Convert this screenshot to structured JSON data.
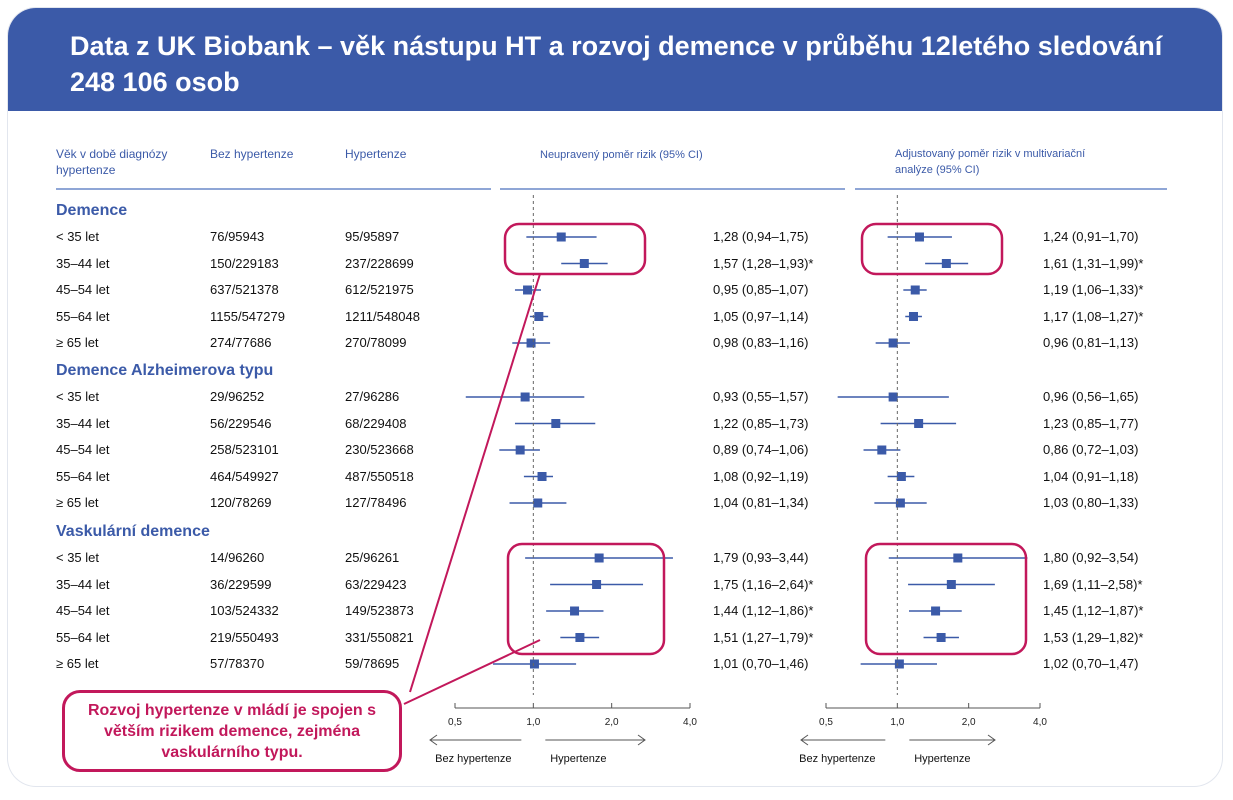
{
  "title": "Data z UK Biobank – věk nástupu HT a rozvoj demence v průběhu 12letého sledování 248 106 osob",
  "headers": {
    "age": "Věk v době diagnózy hypertenze",
    "no_ht": "Bez hypertenze",
    "ht": "Hypertenze",
    "unadjusted": "Neupravený poměr rizik (95% CI)",
    "adjusted": "Adjustovaný poměr rizik v multivariační analýze (95% CI)"
  },
  "callout": "Rozvoj hypertenze v mládí je spojen s větším rizikem demence, zejména vaskulárního typu.",
  "axis": {
    "ticks": [
      "0,5",
      "1,0",
      "2,0",
      "4,0"
    ],
    "left_label": "Bez hypertenze",
    "right_label": "Hypertenze"
  },
  "colors": {
    "banner": "#3b5aa8",
    "accent": "#c2185b",
    "point": "#3b5aa8"
  },
  "chart_data": {
    "type": "forest",
    "x_scale": "log",
    "xlim": [
      0.5,
      4.0
    ],
    "reference": 1.0,
    "groups": [
      {
        "name": "Demence",
        "rows": [
          {
            "age": "< 35 let",
            "no_ht": "76/95943",
            "ht": "95/95897",
            "unadj": [
              1.28,
              0.94,
              1.75
            ],
            "unadj_label": "1,28 (0,94–1,75)",
            "adj": [
              1.24,
              0.91,
              1.7
            ],
            "adj_label": "1,24 (0,91–1,70)"
          },
          {
            "age": "35–44 let",
            "no_ht": "150/229183",
            "ht": "237/228699",
            "unadj": [
              1.57,
              1.28,
              1.93
            ],
            "unadj_label": "1,57 (1,28–1,93)*",
            "adj": [
              1.61,
              1.31,
              1.99
            ],
            "adj_label": "1,61 (1,31–1,99)*"
          },
          {
            "age": "45–54 let",
            "no_ht": "637/521378",
            "ht": "612/521975",
            "unadj": [
              0.95,
              0.85,
              1.07
            ],
            "unadj_label": "0,95 (0,85–1,07)",
            "adj": [
              1.19,
              1.06,
              1.33
            ],
            "adj_label": "1,19 (1,06–1,33)*"
          },
          {
            "age": "55–64 let",
            "no_ht": "1155/547279",
            "ht": "1211/548048",
            "unadj": [
              1.05,
              0.97,
              1.14
            ],
            "unadj_label": "1,05 (0,97–1,14)",
            "adj": [
              1.17,
              1.08,
              1.27
            ],
            "adj_label": "1,17 (1,08–1,27)*"
          },
          {
            "age": "≥ 65 let",
            "no_ht": "274/77686",
            "ht": "270/78099",
            "unadj": [
              0.98,
              0.83,
              1.16
            ],
            "unadj_label": "0,98 (0,83–1,16)",
            "adj": [
              0.96,
              0.81,
              1.13
            ],
            "adj_label": "0,96 (0,81–1,13)"
          }
        ]
      },
      {
        "name": "Demence Alzheimerova typu",
        "rows": [
          {
            "age": "< 35 let",
            "no_ht": "29/96252",
            "ht": "27/96286",
            "unadj": [
              0.93,
              0.55,
              1.57
            ],
            "unadj_label": "0,93 (0,55–1,57)",
            "adj": [
              0.96,
              0.56,
              1.65
            ],
            "adj_label": "0,96 (0,56–1,65)"
          },
          {
            "age": "35–44 let",
            "no_ht": "56/229546",
            "ht": "68/229408",
            "unadj": [
              1.22,
              0.85,
              1.73
            ],
            "unadj_label": "1,22 (0,85–1,73)",
            "adj": [
              1.23,
              0.85,
              1.77
            ],
            "adj_label": "1,23 (0,85–1,77)"
          },
          {
            "age": "45–54 let",
            "no_ht": "258/523101",
            "ht": "230/523668",
            "unadj": [
              0.89,
              0.74,
              1.06
            ],
            "unadj_label": "0,89 (0,74–1,06)",
            "adj": [
              0.86,
              0.72,
              1.03
            ],
            "adj_label": "0,86 (0,72–1,03)"
          },
          {
            "age": "55–64 let",
            "no_ht": "464/549927",
            "ht": "487/550518",
            "unadj": [
              1.08,
              0.92,
              1.19
            ],
            "unadj_label": "1,08 (0,92–1,19)",
            "adj": [
              1.04,
              0.91,
              1.18
            ],
            "adj_label": "1,04 (0,91–1,18)"
          },
          {
            "age": "≥ 65 let",
            "no_ht": "120/78269",
            "ht": "127/78496",
            "unadj": [
              1.04,
              0.81,
              1.34
            ],
            "unadj_label": "1,04 (0,81–1,34)",
            "adj": [
              1.03,
              0.8,
              1.33
            ],
            "adj_label": "1,03 (0,80–1,33)"
          }
        ]
      },
      {
        "name": "Vaskulární demence",
        "rows": [
          {
            "age": "< 35 let",
            "no_ht": "14/96260",
            "ht": "25/96261",
            "unadj": [
              1.79,
              0.93,
              3.44
            ],
            "unadj_label": "1,79 (0,93–3,44)",
            "adj": [
              1.8,
              0.92,
              3.54
            ],
            "adj_label": "1,80 (0,92–3,54)"
          },
          {
            "age": "35–44 let",
            "no_ht": "36/229599",
            "ht": "63/229423",
            "unadj": [
              1.75,
              1.16,
              2.64
            ],
            "unadj_label": "1,75 (1,16–2,64)*",
            "adj": [
              1.69,
              1.11,
              2.58
            ],
            "adj_label": "1,69 (1,11–2,58)*"
          },
          {
            "age": "45–54 let",
            "no_ht": "103/524332",
            "ht": "149/523873",
            "unadj": [
              1.44,
              1.12,
              1.86
            ],
            "unadj_label": "1,44 (1,12–1,86)*",
            "adj": [
              1.45,
              1.12,
              1.87
            ],
            "adj_label": "1,45 (1,12–1,87)*"
          },
          {
            "age": "55–64 let",
            "no_ht": "219/550493",
            "ht": "331/550821",
            "unadj": [
              1.51,
              1.27,
              1.79
            ],
            "unadj_label": "1,51 (1,27–1,79)*",
            "adj": [
              1.53,
              1.29,
              1.82
            ],
            "adj_label": "1,53 (1,29–1,82)*"
          },
          {
            "age": "≥ 65 let",
            "no_ht": "57/78370",
            "ht": "59/78695",
            "unadj": [
              1.01,
              0.7,
              1.46
            ],
            "unadj_label": "1,01 (0,70–1,46)",
            "adj": [
              1.02,
              0.7,
              1.47
            ],
            "adj_label": "1,02 (0,70–1,47)"
          }
        ]
      }
    ]
  }
}
